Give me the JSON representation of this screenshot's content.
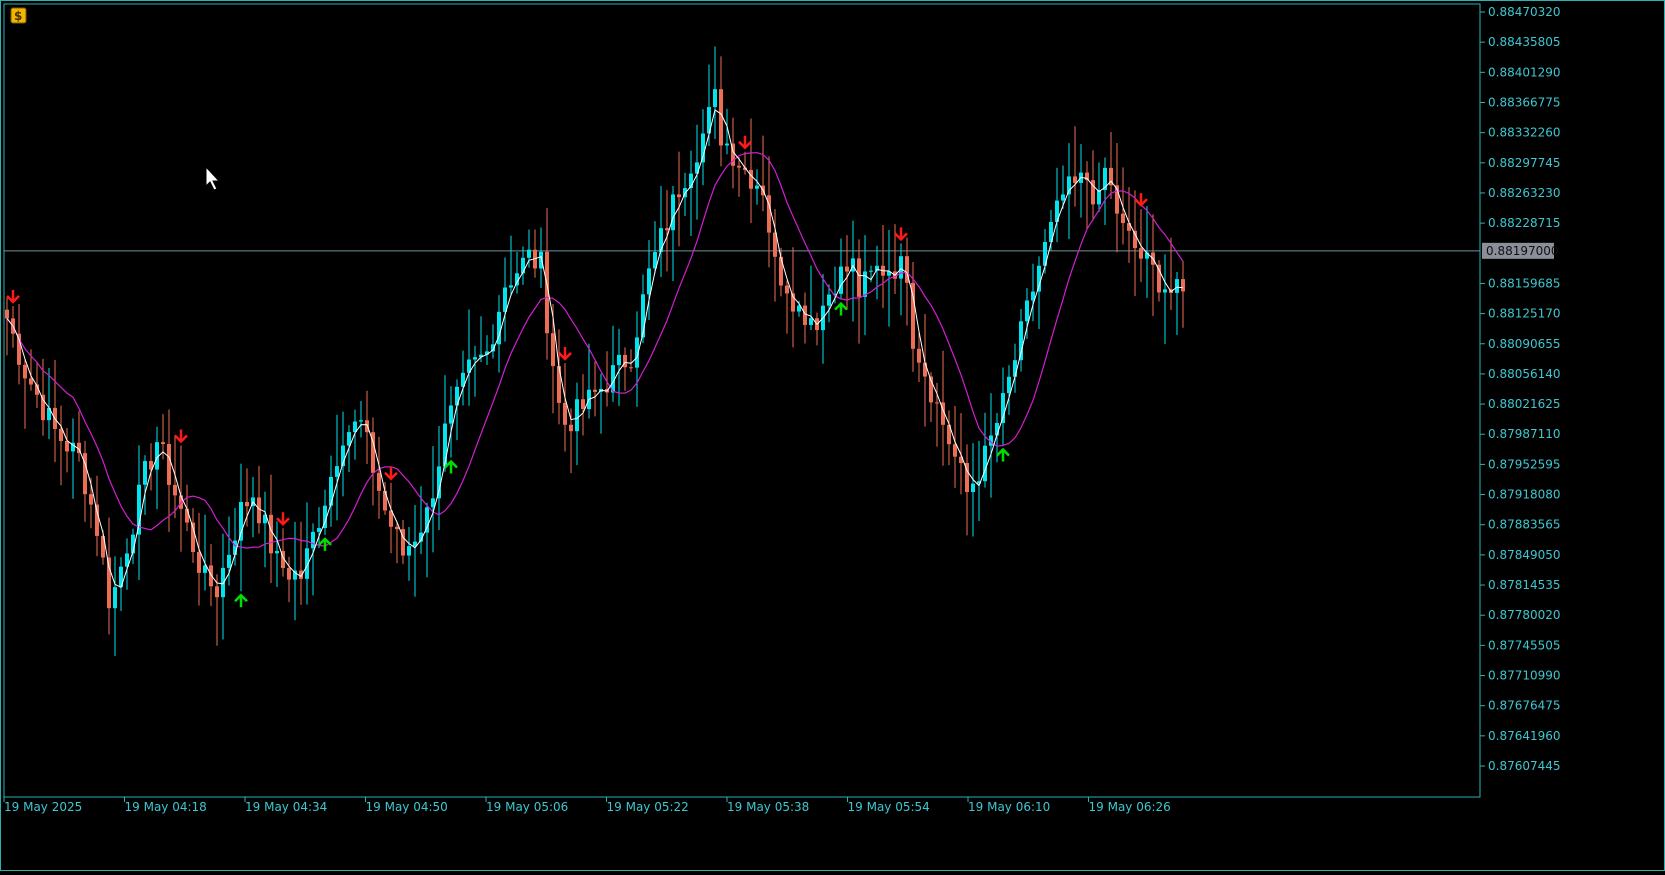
{
  "app": {
    "icon_name": "dollar-coin-icon"
  },
  "colors": {
    "background": "#000000",
    "frame": "#2ab3b3",
    "bull": "#00e5ee",
    "bear": "#ee6e55",
    "ma_fast": "#ffffff",
    "ma_slow": "#d11fd1",
    "arrow_up": "#00dd00",
    "arrow_down": "#ff1a1a",
    "price_label_bg": "#8b8f9a",
    "axis_text": "#3ec7d1"
  },
  "current_price": "0.88197000",
  "chart_data": {
    "type": "candlestick",
    "y_ticks": [
      "0.88470320",
      "0.88435805",
      "0.88401290",
      "0.88366775",
      "0.88332260",
      "0.88297745",
      "0.88263230",
      "0.88228715",
      "0.88159685",
      "0.88125170",
      "0.88090655",
      "0.88056140",
      "0.88021625",
      "0.87987110",
      "0.87952595",
      "0.87918080",
      "0.87883565",
      "0.87849050",
      "0.87814535",
      "0.87780020",
      "0.87745505",
      "0.87710990",
      "0.87676475",
      "0.87641960",
      "0.87607445"
    ],
    "x_ticks": [
      "19 May 2025",
      "19 May 04:18",
      "19 May 04:34",
      "19 May 04:50",
      "19 May 05:06",
      "19 May 05:22",
      "19 May 05:38",
      "19 May 05:54",
      "19 May 06:10",
      "19 May 06:26"
    ],
    "ylim": [
      0.87585,
      0.8848
    ],
    "candle_count": 197,
    "anchors": [
      [
        0,
        0.8812
      ],
      [
        3,
        0.8806
      ],
      [
        8,
        0.8799
      ],
      [
        12,
        0.8796
      ],
      [
        15,
        0.8788
      ],
      [
        17,
        0.878
      ],
      [
        18,
        0.8781
      ],
      [
        23,
        0.8794
      ],
      [
        25,
        0.8798
      ],
      [
        28,
        0.8792
      ],
      [
        33,
        0.8782
      ],
      [
        35,
        0.8781
      ],
      [
        39,
        0.879
      ],
      [
        41,
        0.8792
      ],
      [
        45,
        0.8784
      ],
      [
        47,
        0.8783
      ],
      [
        49,
        0.87825
      ],
      [
        53,
        0.87915
      ],
      [
        56,
        0.8799
      ],
      [
        59,
        0.87998
      ],
      [
        63,
        0.879
      ],
      [
        66,
        0.8785
      ],
      [
        70,
        0.87895
      ],
      [
        73,
        0.8799
      ],
      [
        77,
        0.8806
      ],
      [
        80,
        0.8808
      ],
      [
        83,
        0.8816
      ],
      [
        87,
        0.8819
      ],
      [
        89,
        0.8818
      ],
      [
        90,
        0.8812
      ],
      [
        92,
        0.8802
      ],
      [
        93,
        0.88
      ],
      [
        95,
        0.8801
      ],
      [
        99,
        0.8804
      ],
      [
        104,
        0.8808
      ],
      [
        107,
        0.8817
      ],
      [
        112,
        0.8827
      ],
      [
        116,
        0.8833
      ],
      [
        118,
        0.8837
      ],
      [
        119,
        0.8833
      ],
      [
        123,
        0.8829
      ],
      [
        126,
        0.8827
      ],
      [
        128,
        0.8818
      ],
      [
        130,
        0.8816
      ],
      [
        132,
        0.8813
      ],
      [
        135,
        0.8812
      ],
      [
        138,
        0.88165
      ],
      [
        141,
        0.8818
      ],
      [
        142,
        0.8815
      ],
      [
        145,
        0.88175
      ],
      [
        148,
        0.8818
      ],
      [
        150,
        0.88175
      ],
      [
        151,
        0.881
      ],
      [
        154,
        0.8804
      ],
      [
        158,
        0.8796
      ],
      [
        160,
        0.8792
      ],
      [
        163,
        0.8796
      ],
      [
        166,
        0.8802
      ],
      [
        169,
        0.881
      ],
      [
        172,
        0.8818
      ],
      [
        176,
        0.8826
      ],
      [
        180,
        0.8828
      ],
      [
        182,
        0.8825
      ],
      [
        183,
        0.8829
      ],
      [
        186,
        0.8822
      ],
      [
        189,
        0.8819
      ],
      [
        192,
        0.88165
      ],
      [
        194,
        0.8815
      ],
      [
        196,
        0.88145
      ]
    ],
    "arrows_up": [
      39,
      53,
      74,
      139,
      166
    ],
    "arrows_down": [
      1,
      29,
      46,
      64,
      93,
      123,
      149,
      189
    ],
    "series": [
      {
        "values": []
      },
      {
        "values": []
      }
    ]
  }
}
